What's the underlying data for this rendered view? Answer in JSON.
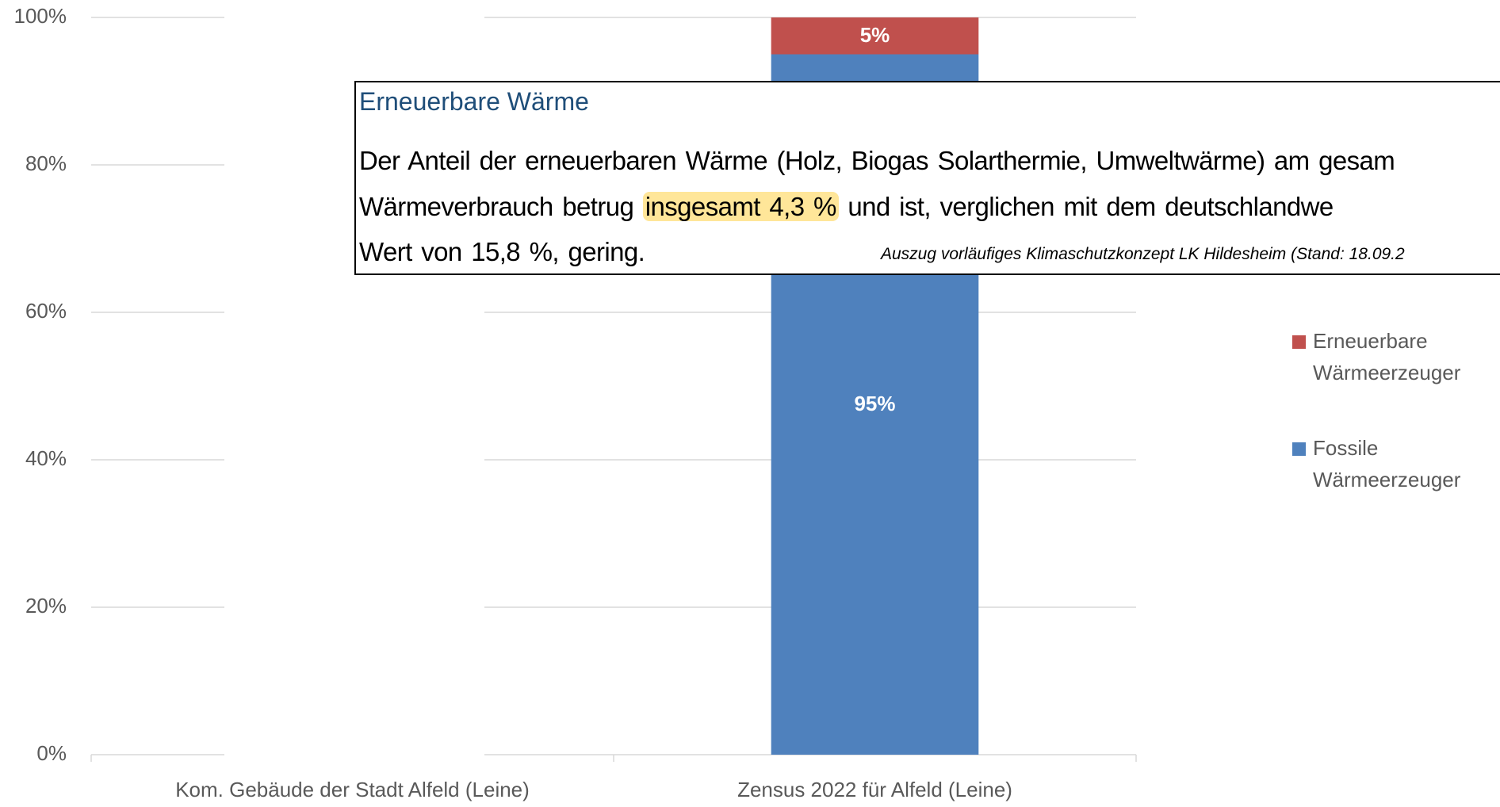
{
  "chart_data": {
    "type": "stacked_bar",
    "categories": [
      "Kom. Gebäude der Stadt Alfeld (Leine)",
      "Zensus 2022 für Alfeld (Leine)"
    ],
    "series": [
      {
        "name": "Fossile Wärmeerzeuger",
        "color": "#4f81bd",
        "values": [
          null,
          95
        ],
        "value_labels": [
          null,
          "95%"
        ]
      },
      {
        "name": "Erneuerbare Wärmeerzeuger",
        "color": "#c0504d",
        "values": [
          null,
          5
        ],
        "value_labels": [
          null,
          "5%"
        ]
      }
    ],
    "ylim": [
      0,
      100
    ],
    "yticks": [
      {
        "value": 0,
        "label": "0%"
      },
      {
        "value": 20,
        "label": "20%"
      },
      {
        "value": 40,
        "label": "40%"
      },
      {
        "value": 60,
        "label": "60%"
      },
      {
        "value": 80,
        "label": "80%"
      },
      {
        "value": 100,
        "label": "100%"
      }
    ],
    "grid": true,
    "legend": "right",
    "annotation": {
      "title": "Erneuerbare Wärme",
      "line1": "Der Anteil der erneuerbaren Wärme (Holz, Biogas Solarthermie, Umweltwärme) am gesam",
      "line2_start": "Wärmeverbrauch betrug",
      "highlight": "insgesamt 4,3 %",
      "line2_end": "und ist, verglichen mit dem deutschlandwe",
      "line3": "Wert von 15,8 %, gering.",
      "source": "Auszug vorläufiges Klimaschutzkonzept LK Hildesheim (Stand: 18.09.2"
    }
  }
}
